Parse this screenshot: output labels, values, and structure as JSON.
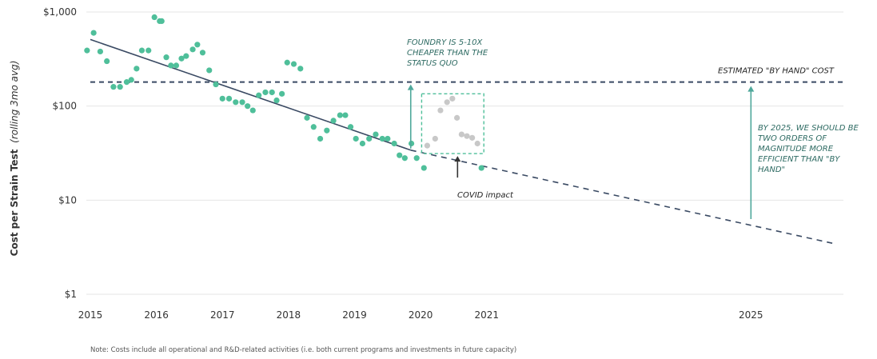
{
  "chart_data": {
    "type": "scatter",
    "ylabel": "Cost per Strain Test",
    "ylabel_sub": "(rolling 3mo avg)",
    "y_scale": "log",
    "ylim": [
      1,
      1000
    ],
    "y_ticks": [
      {
        "value": 1,
        "label": "$1"
      },
      {
        "value": 10,
        "label": "$10"
      },
      {
        "value": 100,
        "label": "$100"
      },
      {
        "value": 1000,
        "label": "$1,000"
      }
    ],
    "xlim": [
      2015,
      2026.4
    ],
    "x_ticks": [
      {
        "value": 2015,
        "label": "2015"
      },
      {
        "value": 2016,
        "label": "2016"
      },
      {
        "value": 2017,
        "label": "2017"
      },
      {
        "value": 2018,
        "label": "2018"
      },
      {
        "value": 2019,
        "label": "2019"
      },
      {
        "value": 2020,
        "label": "2020"
      },
      {
        "value": 2021,
        "label": "2021"
      },
      {
        "value": 2025,
        "label": "2025"
      }
    ],
    "grid": "horizontal",
    "colors": {
      "points": "#4fbf9a",
      "covid_points": "#c8c8c8",
      "trend": "#3a4a63",
      "reference": "#3a4a63",
      "annotation_text": "#2e6b63",
      "arrows": "#4fa89b",
      "covid_box": "#4fbf9a"
    },
    "series": [
      {
        "role": "observed",
        "x": [
          2014.95,
          2015.05,
          2015.15,
          2015.25,
          2015.35,
          2015.45,
          2015.55,
          2015.62,
          2015.7,
          2015.78,
          2015.88,
          2015.97,
          2016.05,
          2016.08,
          2016.15,
          2016.22,
          2016.3,
          2016.38,
          2016.45,
          2016.55,
          2016.62,
          2016.7,
          2016.8,
          2016.9,
          2017.0,
          2017.1,
          2017.2,
          2017.3,
          2017.38,
          2017.46,
          2017.55,
          2017.65,
          2017.75,
          2017.82,
          2017.9,
          2017.98,
          2018.08,
          2018.18,
          2018.28,
          2018.38,
          2018.48,
          2018.58,
          2018.68,
          2018.78,
          2018.86,
          2018.94,
          2019.02,
          2019.12,
          2019.22,
          2019.32,
          2019.42,
          2019.5,
          2019.6,
          2019.68,
          2019.76,
          2019.86,
          2019.94,
          2020.05,
          2020.92
        ],
        "y": [
          390,
          600,
          380,
          300,
          160,
          160,
          180,
          190,
          250,
          390,
          390,
          880,
          800,
          800,
          330,
          270,
          270,
          320,
          340,
          400,
          450,
          370,
          240,
          170,
          120,
          120,
          110,
          110,
          100,
          90,
          130,
          140,
          140,
          115,
          135,
          290,
          280,
          250,
          75,
          60,
          45,
          55,
          70,
          80,
          80,
          60,
          45,
          40,
          45,
          50,
          45,
          45,
          40,
          30,
          28,
          40,
          28,
          22,
          22
        ]
      },
      {
        "role": "covid",
        "x": [
          2020.1,
          2020.22,
          2020.3,
          2020.4,
          2020.48,
          2020.55,
          2020.62,
          2020.7,
          2020.78,
          2020.86
        ],
        "y": [
          38,
          45,
          90,
          110,
          120,
          75,
          50,
          48,
          46,
          40
        ]
      }
    ],
    "trend_fit": {
      "x": [
        2015.0,
        2019.85
      ],
      "y": [
        510,
        34
      ]
    },
    "trend_projection": {
      "x": [
        2019.85,
        2026.3
      ],
      "y": [
        34,
        3.4
      ]
    },
    "reference_line": {
      "value": 180,
      "label": "ESTIMATED \"BY HAND\" COST"
    },
    "annotations": [
      {
        "id": "foundry",
        "lines": [
          "FOUNDRY IS 5-10X",
          "CHEAPER THAN THE",
          "STATUS QUO"
        ]
      },
      {
        "id": "covid",
        "lines": [
          "COVID impact"
        ]
      },
      {
        "id": "target",
        "lines": [
          "BY 2025, WE SHOULD BE",
          "TWO ORDERS OF",
          "MAGNITUDE MORE",
          "EFFICIENT THAN \"BY",
          "HAND\""
        ]
      }
    ]
  },
  "note": "Note: Costs include all operational and R&D-related activities (i.e. both current programs and investments in future capacity)"
}
